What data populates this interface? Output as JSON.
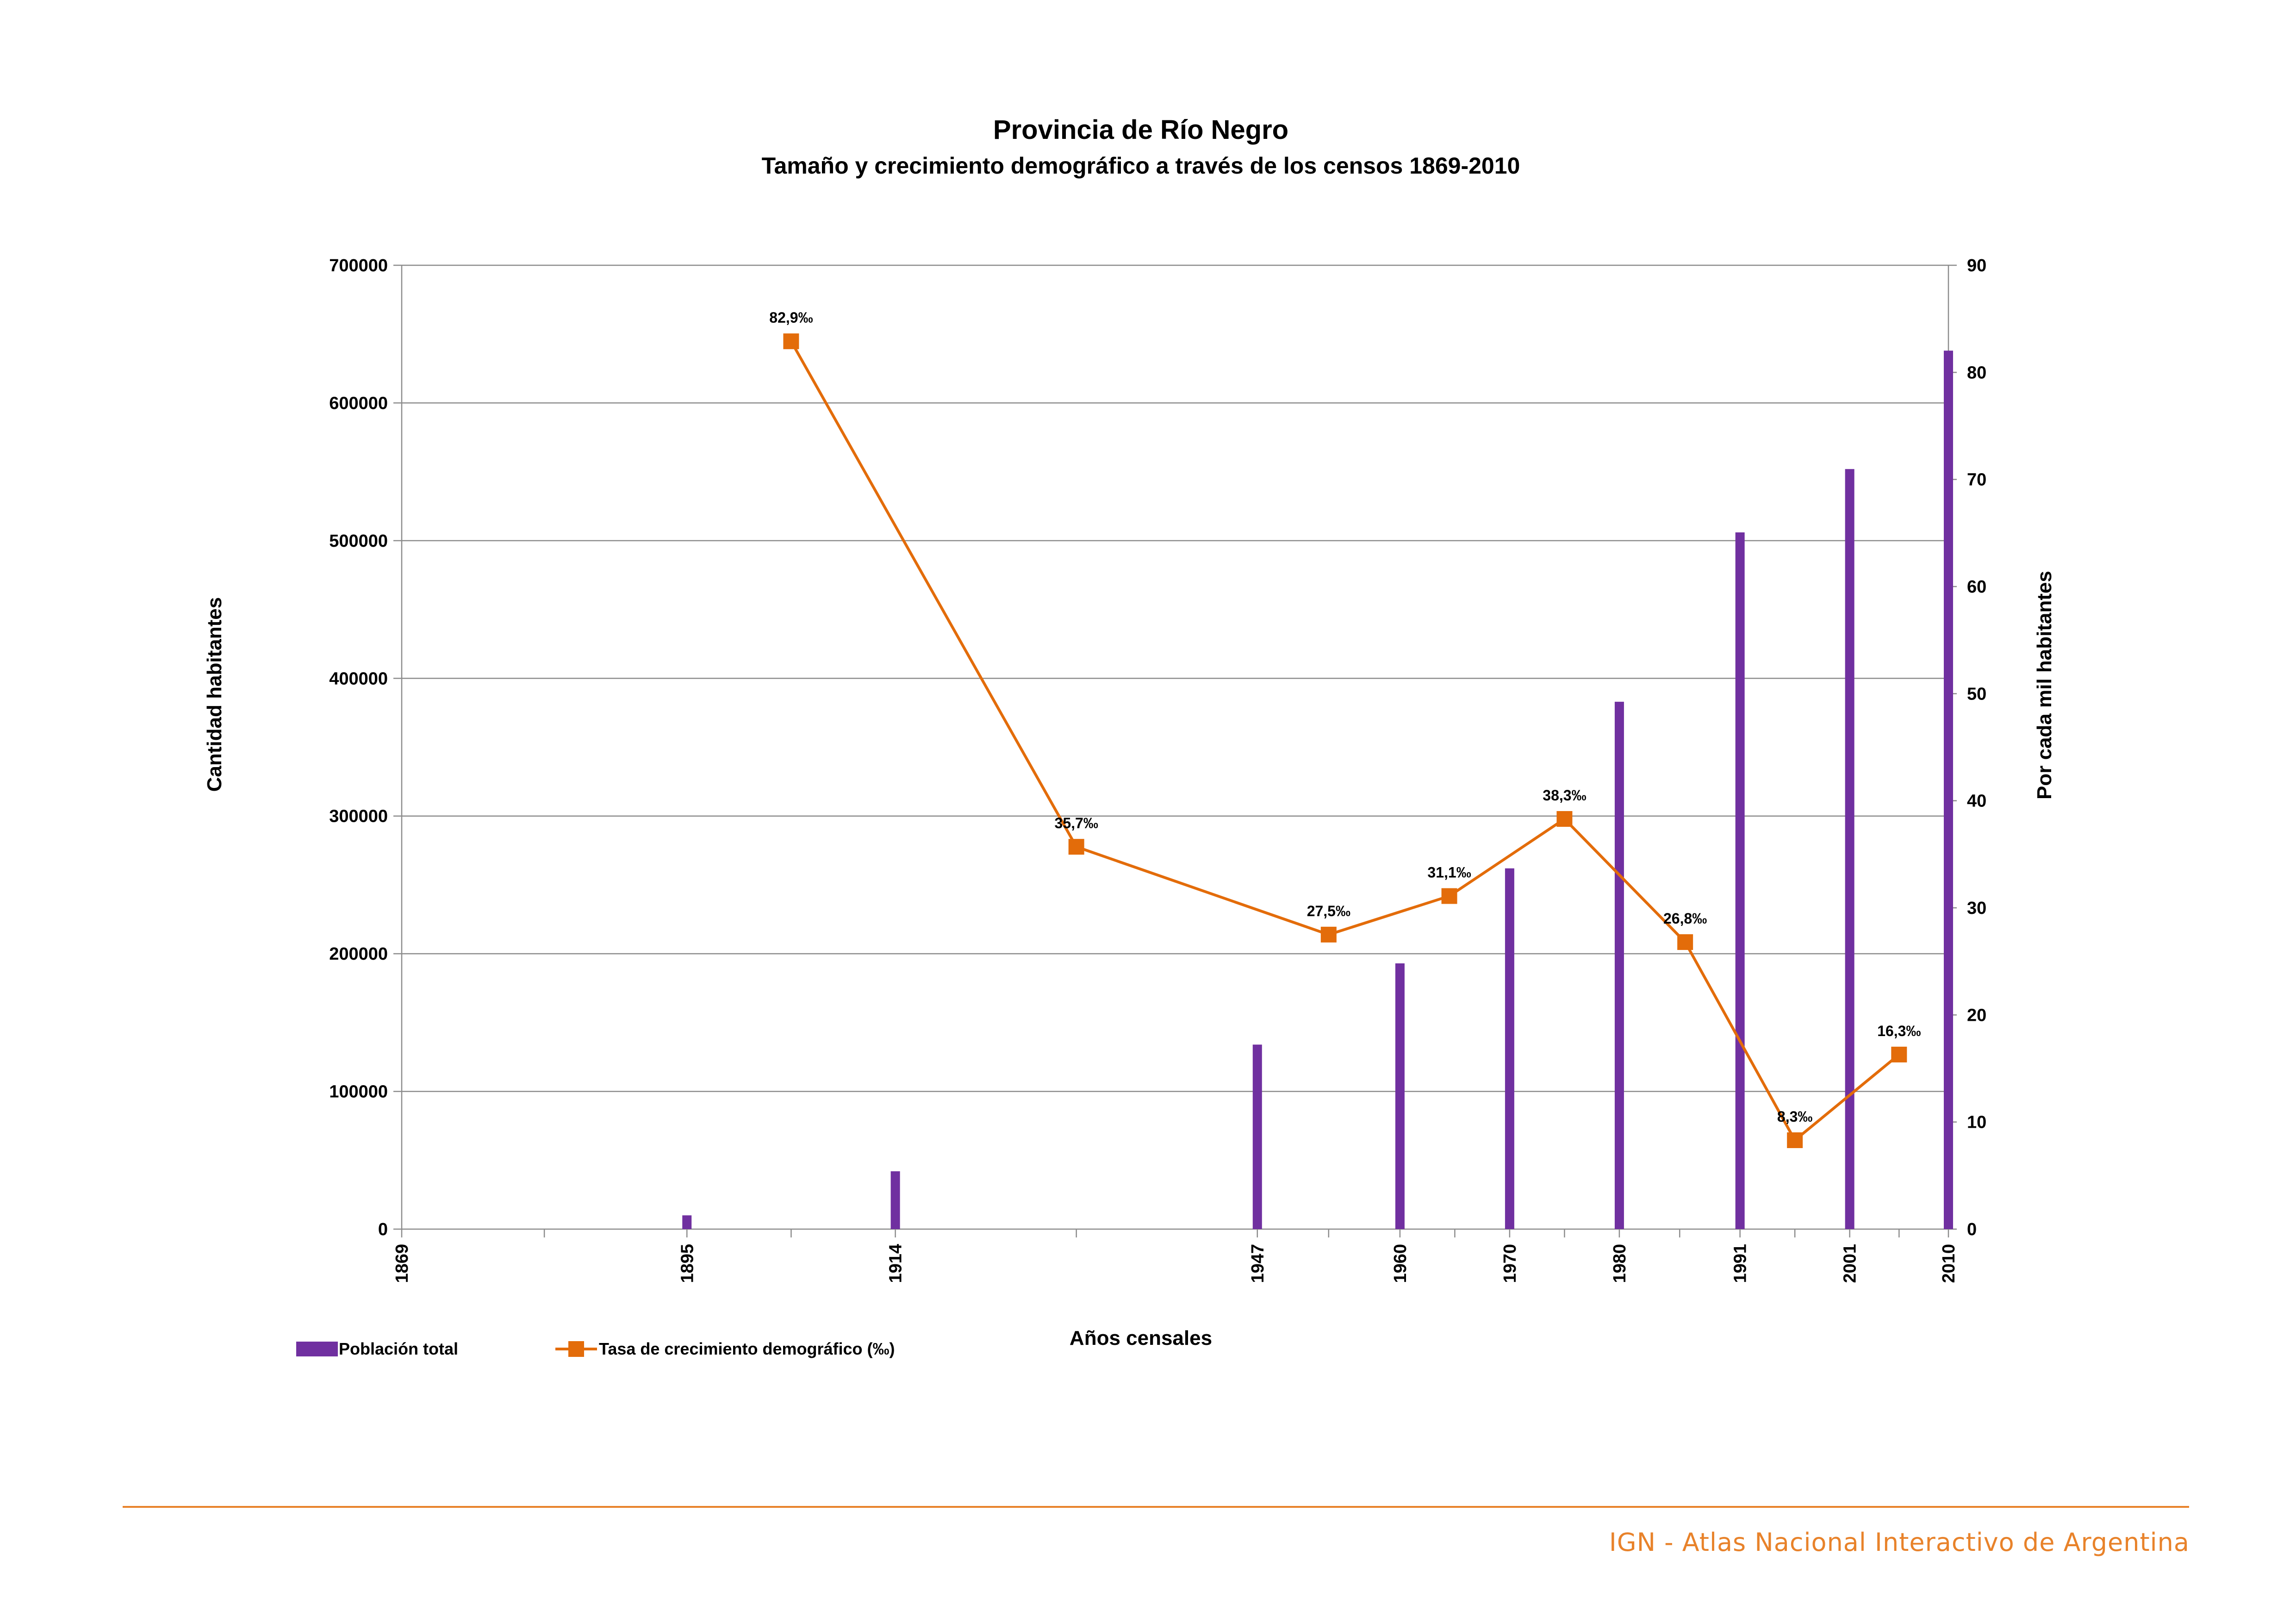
{
  "chart_data": {
    "type": "bar+line",
    "title": "Provincia de Río Negro",
    "subtitle": "Tamaño y crecimiento demográfico a través de los censos 1869-2010",
    "xlabel": "Años censales",
    "ylabel_left": "Cantidad habitantes",
    "ylabel_right": "Por cada mil habitantes",
    "ylim_left": [
      0,
      700000
    ],
    "ylim_right": [
      0,
      90
    ],
    "x_range": [
      1869,
      2010
    ],
    "y_ticks_left": [
      "0",
      "100000",
      "200000",
      "300000",
      "400000",
      "500000",
      "600000",
      "700000"
    ],
    "y_ticks_right": [
      "0",
      "10",
      "20",
      "30",
      "40",
      "50",
      "60",
      "70",
      "80",
      "90"
    ],
    "x_tick_labels": [
      {
        "year": 1869,
        "label": "1869"
      },
      {
        "year": 1895,
        "label": "1895"
      },
      {
        "year": 1914,
        "label": "1914"
      },
      {
        "year": 1947,
        "label": "1947"
      },
      {
        "year": 1960,
        "label": "1960"
      },
      {
        "year": 1970,
        "label": "1970"
      },
      {
        "year": 1980,
        "label": "1980"
      },
      {
        "year": 1991,
        "label": "1991"
      },
      {
        "year": 2001,
        "label": "2001"
      },
      {
        "year": 2010,
        "label": "2010"
      }
    ],
    "series": [
      {
        "name": "Población total",
        "kind": "bar",
        "color": "#7030a0",
        "points": [
          {
            "x": 1895,
            "y": 10000
          },
          {
            "x": 1914,
            "y": 42000
          },
          {
            "x": 1947,
            "y": 134000
          },
          {
            "x": 1960,
            "y": 193000
          },
          {
            "x": 1970,
            "y": 262000
          },
          {
            "x": 1980,
            "y": 383000
          },
          {
            "x": 1991,
            "y": 506000
          },
          {
            "x": 2001,
            "y": 552000
          },
          {
            "x": 2010,
            "y": 638000
          }
        ]
      },
      {
        "name": "Tasa de crecimiento demográfico (‰)",
        "kind": "line",
        "color": "#e36c0a",
        "points": [
          {
            "x": 1904.5,
            "y": 82.9,
            "label": "82,9‰"
          },
          {
            "x": 1930.5,
            "y": 35.7,
            "label": "35,7‰"
          },
          {
            "x": 1953.5,
            "y": 27.5,
            "label": "27,5‰"
          },
          {
            "x": 1964.5,
            "y": 31.1,
            "label": "31,1‰"
          },
          {
            "x": 1975,
            "y": 38.3,
            "label": "38,3‰"
          },
          {
            "x": 1986,
            "y": 26.8,
            "label": "26,8‰"
          },
          {
            "x": 1996,
            "y": 8.3,
            "label": "8,3‰"
          },
          {
            "x": 2005.5,
            "y": 16.3,
            "label": "16,3‰"
          }
        ]
      }
    ],
    "grid": true,
    "legend_position": "bottom-left"
  },
  "footer": {
    "text": "IGN - Atlas Nacional Interactivo de Argentina"
  }
}
